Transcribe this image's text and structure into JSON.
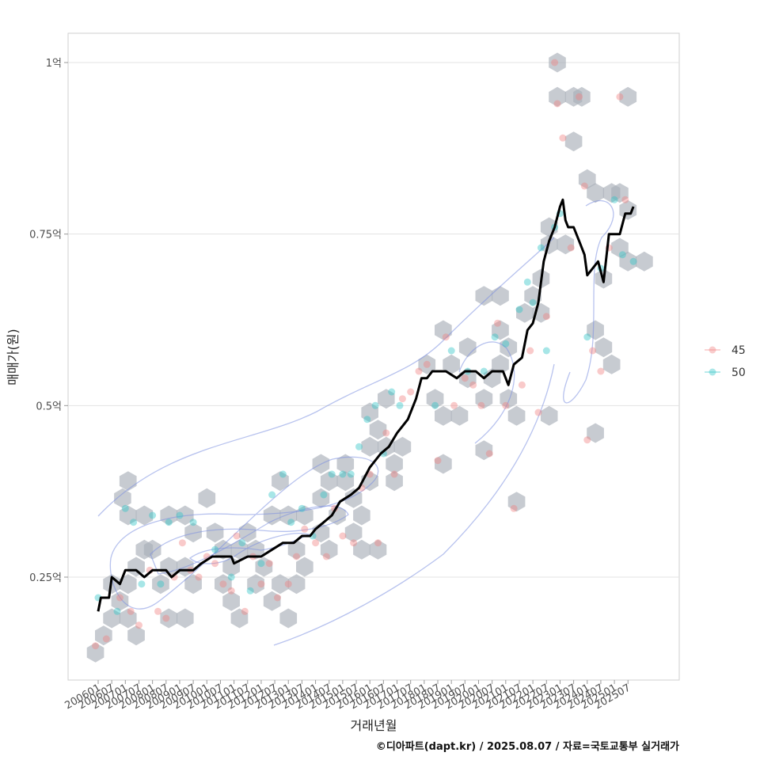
{
  "chart_data": {
    "type": "scatter",
    "xlabel": "거래년월",
    "ylabel": "매매가(원)",
    "caption": "©디아파트(dapt.kr) / 2025.08.07 / 자료=국토교통부 실거래가",
    "x_ticks": [
      "200601",
      "200607",
      "200701",
      "200707",
      "200801",
      "200807",
      "200901",
      "200907",
      "201001",
      "201007",
      "201101",
      "201107",
      "201201",
      "201207",
      "201301",
      "201307",
      "201401",
      "201407",
      "201501",
      "201507",
      "201601",
      "201607",
      "201701",
      "201707",
      "201801",
      "201807",
      "201901",
      "201907",
      "202001",
      "202007",
      "202101",
      "202107",
      "202201",
      "202207",
      "202301",
      "202307",
      "202401",
      "202407",
      "202501",
      "202507"
    ],
    "y_ticks": [
      {
        "value": 0.25,
        "label": "0.25억"
      },
      {
        "value": 0.5,
        "label": "0.5억"
      },
      {
        "value": 0.75,
        "label": "0.75억"
      },
      {
        "value": 1.0,
        "label": "1억"
      }
    ],
    "ylim": [
      0.1,
      1.04
    ],
    "xlim": [
      2004.5,
      2027.0
    ],
    "grid": true,
    "legend_position": "right",
    "colors": {
      "45": "#f08080",
      "50": "#2ec4c6",
      "trend": "#000000",
      "density": "#7b8fe0",
      "hex": "#a9afb8"
    },
    "series": [
      {
        "name": "45",
        "color": "#f08080",
        "points": [
          [
            2005.9,
            0.15
          ],
          [
            2006.3,
            0.16
          ],
          [
            2006.8,
            0.22
          ],
          [
            2007.2,
            0.2
          ],
          [
            2007.5,
            0.18
          ],
          [
            2007.9,
            0.26
          ],
          [
            2008.2,
            0.2
          ],
          [
            2008.5,
            0.19
          ],
          [
            2008.8,
            0.25
          ],
          [
            2009.1,
            0.3
          ],
          [
            2009.4,
            0.26
          ],
          [
            2009.7,
            0.25
          ],
          [
            2010.0,
            0.28
          ],
          [
            2010.3,
            0.27
          ],
          [
            2010.6,
            0.24
          ],
          [
            2010.9,
            0.23
          ],
          [
            2011.1,
            0.31
          ],
          [
            2011.4,
            0.2
          ],
          [
            2011.7,
            0.28
          ],
          [
            2012.0,
            0.24
          ],
          [
            2012.3,
            0.27
          ],
          [
            2012.6,
            0.22
          ],
          [
            2013.0,
            0.24
          ],
          [
            2013.3,
            0.28
          ],
          [
            2013.6,
            0.32
          ],
          [
            2014.0,
            0.3
          ],
          [
            2014.4,
            0.28
          ],
          [
            2014.7,
            0.35
          ],
          [
            2015.0,
            0.31
          ],
          [
            2015.4,
            0.3
          ],
          [
            2015.7,
            0.38
          ],
          [
            2016.0,
            0.4
          ],
          [
            2016.3,
            0.3
          ],
          [
            2016.6,
            0.46
          ],
          [
            2016.9,
            0.4
          ],
          [
            2017.2,
            0.51
          ],
          [
            2017.5,
            0.52
          ],
          [
            2017.8,
            0.55
          ],
          [
            2018.1,
            0.56
          ],
          [
            2018.5,
            0.42
          ],
          [
            2018.8,
            0.6
          ],
          [
            2019.1,
            0.5
          ],
          [
            2019.5,
            0.54
          ],
          [
            2019.8,
            0.53
          ],
          [
            2020.1,
            0.5
          ],
          [
            2020.4,
            0.43
          ],
          [
            2020.7,
            0.62
          ],
          [
            2021.0,
            0.5
          ],
          [
            2021.3,
            0.35
          ],
          [
            2021.6,
            0.53
          ],
          [
            2021.9,
            0.58
          ],
          [
            2022.2,
            0.49
          ],
          [
            2022.5,
            0.63
          ],
          [
            2022.8,
            1.0
          ],
          [
            2022.9,
            0.94
          ],
          [
            2023.1,
            0.89
          ],
          [
            2023.4,
            0.73
          ],
          [
            2023.7,
            0.95
          ],
          [
            2023.9,
            0.82
          ],
          [
            2024.0,
            0.45
          ],
          [
            2024.2,
            0.58
          ],
          [
            2024.5,
            0.55
          ],
          [
            2024.8,
            0.73
          ],
          [
            2025.2,
            0.95
          ],
          [
            2025.4,
            0.8
          ]
        ]
      },
      {
        "name": "50",
        "color": "#2ec4c6",
        "points": [
          [
            2006.0,
            0.22
          ],
          [
            2006.7,
            0.2
          ],
          [
            2007.0,
            0.35
          ],
          [
            2007.3,
            0.33
          ],
          [
            2007.6,
            0.24
          ],
          [
            2008.0,
            0.34
          ],
          [
            2008.3,
            0.24
          ],
          [
            2008.6,
            0.33
          ],
          [
            2009.0,
            0.34
          ],
          [
            2009.5,
            0.33
          ],
          [
            2010.3,
            0.29
          ],
          [
            2010.9,
            0.25
          ],
          [
            2011.3,
            0.3
          ],
          [
            2011.6,
            0.23
          ],
          [
            2012.0,
            0.27
          ],
          [
            2012.4,
            0.37
          ],
          [
            2012.8,
            0.4
          ],
          [
            2013.1,
            0.33
          ],
          [
            2013.5,
            0.35
          ],
          [
            2013.9,
            0.31
          ],
          [
            2014.3,
            0.37
          ],
          [
            2014.6,
            0.4
          ],
          [
            2015.0,
            0.4
          ],
          [
            2015.3,
            0.4
          ],
          [
            2015.6,
            0.44
          ],
          [
            2015.9,
            0.48
          ],
          [
            2016.2,
            0.5
          ],
          [
            2016.5,
            0.43
          ],
          [
            2016.8,
            0.52
          ],
          [
            2017.1,
            0.5
          ],
          [
            2018.4,
            0.5
          ],
          [
            2019.0,
            0.58
          ],
          [
            2019.6,
            0.55
          ],
          [
            2020.2,
            0.55
          ],
          [
            2020.6,
            0.6
          ],
          [
            2021.0,
            0.59
          ],
          [
            2021.5,
            0.64
          ],
          [
            2021.8,
            0.68
          ],
          [
            2022.0,
            0.65
          ],
          [
            2022.3,
            0.73
          ],
          [
            2022.5,
            0.58
          ],
          [
            2022.8,
            0.76
          ],
          [
            2023.0,
            0.78
          ],
          [
            2024.0,
            0.6
          ],
          [
            2024.5,
            0.7
          ],
          [
            2025.0,
            0.8
          ],
          [
            2025.3,
            0.72
          ],
          [
            2025.7,
            0.71
          ]
        ]
      }
    ],
    "trend_line": [
      [
        2006.0,
        0.2
      ],
      [
        2006.1,
        0.22
      ],
      [
        2006.4,
        0.22
      ],
      [
        2006.5,
        0.25
      ],
      [
        2006.8,
        0.24
      ],
      [
        2007.0,
        0.26
      ],
      [
        2007.4,
        0.26
      ],
      [
        2007.7,
        0.25
      ],
      [
        2008.0,
        0.26
      ],
      [
        2008.5,
        0.26
      ],
      [
        2008.7,
        0.25
      ],
      [
        2009.0,
        0.26
      ],
      [
        2009.5,
        0.26
      ],
      [
        2009.8,
        0.27
      ],
      [
        2010.2,
        0.28
      ],
      [
        2010.5,
        0.28
      ],
      [
        2010.9,
        0.28
      ],
      [
        2011.0,
        0.27
      ],
      [
        2011.5,
        0.28
      ],
      [
        2012.0,
        0.28
      ],
      [
        2012.4,
        0.29
      ],
      [
        2012.8,
        0.3
      ],
      [
        2013.2,
        0.3
      ],
      [
        2013.5,
        0.31
      ],
      [
        2013.8,
        0.31
      ],
      [
        2014.0,
        0.32
      ],
      [
        2014.3,
        0.33
      ],
      [
        2014.6,
        0.34
      ],
      [
        2014.9,
        0.36
      ],
      [
        2015.3,
        0.37
      ],
      [
        2015.6,
        0.38
      ],
      [
        2016.0,
        0.41
      ],
      [
        2016.4,
        0.43
      ],
      [
        2016.7,
        0.44
      ],
      [
        2017.0,
        0.46
      ],
      [
        2017.4,
        0.48
      ],
      [
        2017.7,
        0.51
      ],
      [
        2017.9,
        0.54
      ],
      [
        2018.1,
        0.54
      ],
      [
        2018.3,
        0.55
      ],
      [
        2018.8,
        0.55
      ],
      [
        2019.2,
        0.54
      ],
      [
        2019.5,
        0.55
      ],
      [
        2019.9,
        0.55
      ],
      [
        2020.2,
        0.54
      ],
      [
        2020.5,
        0.55
      ],
      [
        2020.9,
        0.55
      ],
      [
        2021.1,
        0.53
      ],
      [
        2021.3,
        0.56
      ],
      [
        2021.6,
        0.57
      ],
      [
        2021.8,
        0.61
      ],
      [
        2022.0,
        0.62
      ],
      [
        2022.2,
        0.65
      ],
      [
        2022.4,
        0.71
      ],
      [
        2022.6,
        0.74
      ],
      [
        2022.8,
        0.76
      ],
      [
        2023.0,
        0.79
      ],
      [
        2023.1,
        0.8
      ],
      [
        2023.2,
        0.77
      ],
      [
        2023.3,
        0.76
      ],
      [
        2023.5,
        0.76
      ],
      [
        2023.7,
        0.74
      ],
      [
        2023.9,
        0.72
      ],
      [
        2024.0,
        0.69
      ],
      [
        2024.2,
        0.7
      ],
      [
        2024.4,
        0.71
      ],
      [
        2024.6,
        0.68
      ],
      [
        2024.8,
        0.75
      ],
      [
        2025.0,
        0.75
      ],
      [
        2025.2,
        0.75
      ],
      [
        2025.4,
        0.78
      ],
      [
        2025.6,
        0.78
      ],
      [
        2025.7,
        0.79
      ]
    ],
    "hex_bins": [
      [
        2005.9,
        0.14
      ],
      [
        2006.2,
        0.165
      ],
      [
        2006.5,
        0.19
      ],
      [
        2006.8,
        0.215
      ],
      [
        2006.5,
        0.24
      ],
      [
        2007.1,
        0.19
      ],
      [
        2007.4,
        0.165
      ],
      [
        2007.1,
        0.24
      ],
      [
        2007.4,
        0.265
      ],
      [
        2007.7,
        0.29
      ],
      [
        2007.1,
        0.34
      ],
      [
        2006.9,
        0.365
      ],
      [
        2007.1,
        0.39
      ],
      [
        2007.7,
        0.34
      ],
      [
        2008.0,
        0.29
      ],
      [
        2008.3,
        0.24
      ],
      [
        2008.6,
        0.19
      ],
      [
        2009.2,
        0.19
      ],
      [
        2008.6,
        0.265
      ],
      [
        2009.2,
        0.265
      ],
      [
        2009.5,
        0.24
      ],
      [
        2009.5,
        0.315
      ],
      [
        2009.2,
        0.34
      ],
      [
        2008.6,
        0.34
      ],
      [
        2010.0,
        0.365
      ],
      [
        2010.3,
        0.315
      ],
      [
        2010.6,
        0.29
      ],
      [
        2010.9,
        0.265
      ],
      [
        2010.6,
        0.24
      ],
      [
        2010.9,
        0.215
      ],
      [
        2011.2,
        0.19
      ],
      [
        2011.2,
        0.29
      ],
      [
        2011.5,
        0.315
      ],
      [
        2011.8,
        0.29
      ],
      [
        2011.8,
        0.24
      ],
      [
        2012.1,
        0.265
      ],
      [
        2012.4,
        0.215
      ],
      [
        2012.7,
        0.24
      ],
      [
        2012.4,
        0.34
      ],
      [
        2012.7,
        0.39
      ],
      [
        2013.0,
        0.34
      ],
      [
        2013.3,
        0.29
      ],
      [
        2013.0,
        0.19
      ],
      [
        2013.6,
        0.34
      ],
      [
        2013.6,
        0.265
      ],
      [
        2013.3,
        0.24
      ],
      [
        2014.2,
        0.315
      ],
      [
        2014.5,
        0.29
      ],
      [
        2014.2,
        0.365
      ],
      [
        2014.5,
        0.39
      ],
      [
        2014.2,
        0.415
      ],
      [
        2014.8,
        0.34
      ],
      [
        2015.1,
        0.39
      ],
      [
        2015.1,
        0.415
      ],
      [
        2015.4,
        0.365
      ],
      [
        2015.7,
        0.34
      ],
      [
        2015.4,
        0.315
      ],
      [
        2015.7,
        0.29
      ],
      [
        2016.0,
        0.39
      ],
      [
        2016.3,
        0.29
      ],
      [
        2016.0,
        0.44
      ],
      [
        2016.3,
        0.465
      ],
      [
        2016.0,
        0.49
      ],
      [
        2016.6,
        0.44
      ],
      [
        2016.9,
        0.415
      ],
      [
        2016.9,
        0.39
      ],
      [
        2017.2,
        0.44
      ],
      [
        2016.6,
        0.51
      ],
      [
        2018.1,
        0.56
      ],
      [
        2018.4,
        0.51
      ],
      [
        2018.7,
        0.485
      ],
      [
        2018.7,
        0.415
      ],
      [
        2018.7,
        0.61
      ],
      [
        2019.0,
        0.56
      ],
      [
        2019.3,
        0.485
      ],
      [
        2019.6,
        0.54
      ],
      [
        2019.6,
        0.585
      ],
      [
        2020.2,
        0.66
      ],
      [
        2020.2,
        0.51
      ],
      [
        2020.2,
        0.435
      ],
      [
        2020.5,
        0.54
      ],
      [
        2020.8,
        0.56
      ],
      [
        2020.8,
        0.66
      ],
      [
        2020.8,
        0.61
      ],
      [
        2021.1,
        0.585
      ],
      [
        2021.1,
        0.51
      ],
      [
        2021.4,
        0.485
      ],
      [
        2021.4,
        0.36
      ],
      [
        2021.7,
        0.635
      ],
      [
        2022.0,
        0.66
      ],
      [
        2022.3,
        0.635
      ],
      [
        2022.3,
        0.685
      ],
      [
        2022.6,
        0.735
      ],
      [
        2022.6,
        0.76
      ],
      [
        2022.6,
        0.485
      ],
      [
        2022.9,
        1.0
      ],
      [
        2022.9,
        0.95
      ],
      [
        2023.2,
        0.735
      ],
      [
        2023.5,
        0.885
      ],
      [
        2023.5,
        0.95
      ],
      [
        2023.8,
        0.95
      ],
      [
        2024.0,
        0.83
      ],
      [
        2024.3,
        0.81
      ],
      [
        2024.3,
        0.61
      ],
      [
        2024.3,
        0.46
      ],
      [
        2024.6,
        0.585
      ],
      [
        2024.6,
        0.685
      ],
      [
        2024.9,
        0.56
      ],
      [
        2024.9,
        0.81
      ],
      [
        2025.2,
        0.81
      ],
      [
        2025.2,
        0.73
      ],
      [
        2025.5,
        0.71
      ],
      [
        2025.5,
        0.785
      ],
      [
        2025.5,
        0.95
      ],
      [
        2026.1,
        0.71
      ]
    ]
  },
  "legend": {
    "items": [
      {
        "label": "45",
        "color": "#f08080"
      },
      {
        "label": "50",
        "color": "#2ec4c6"
      }
    ]
  }
}
